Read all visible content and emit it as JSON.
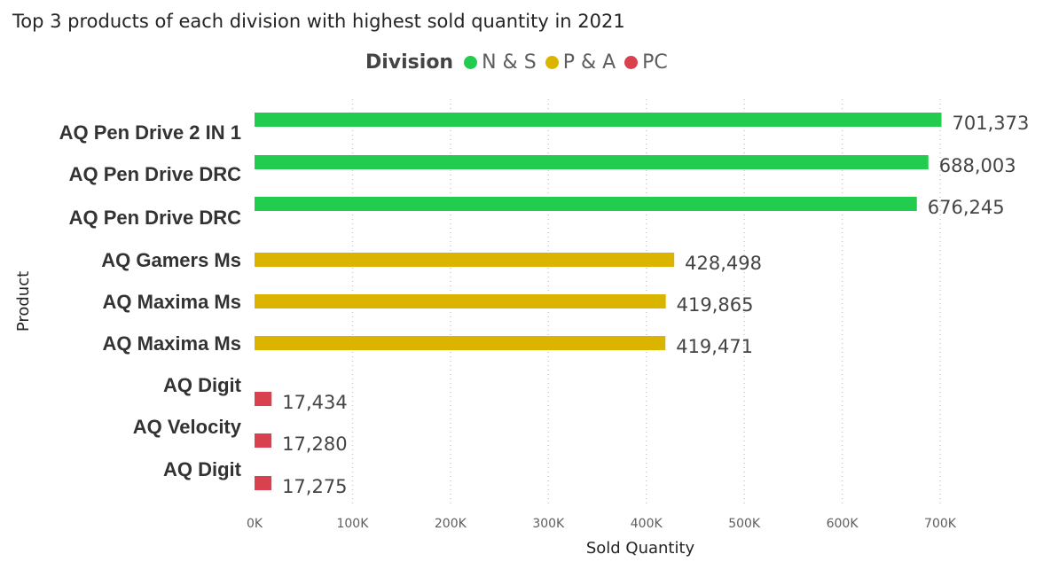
{
  "chart_data": {
    "type": "bar",
    "orientation": "horizontal",
    "title": "Top 3 products of each division with highest sold quantity in 2021",
    "xlabel": "Sold Quantity",
    "ylabel": "Product",
    "xlim": [
      0,
      700000
    ],
    "x_ticks": [
      "0K",
      "100K",
      "200K",
      "300K",
      "400K",
      "500K",
      "600K",
      "700K"
    ],
    "grid": true,
    "legend": {
      "title": "Division",
      "position": "top-center",
      "items": [
        {
          "name": "N & S",
          "color": "#22cc4e"
        },
        {
          "name": "P & A",
          "color": "#dbb400"
        },
        {
          "name": "PC",
          "color": "#d9414f"
        }
      ]
    },
    "bars": [
      {
        "category": "AQ Pen Drive 2 IN 1",
        "value": 701373,
        "value_label": "701,373",
        "division": "N & S"
      },
      {
        "category": "AQ Pen Drive DRC",
        "value": 688003,
        "value_label": "688,003",
        "division": "N & S"
      },
      {
        "category": "AQ Pen Drive DRC",
        "value": 676245,
        "value_label": "676,245",
        "division": "N & S"
      },
      {
        "category": "AQ Gamers Ms",
        "value": 428498,
        "value_label": "428,498",
        "division": "P & A"
      },
      {
        "category": "AQ Maxima Ms",
        "value": 419865,
        "value_label": "419,865",
        "division": "P & A"
      },
      {
        "category": "AQ Maxima Ms",
        "value": 419471,
        "value_label": "419,471",
        "division": "P & A"
      },
      {
        "category": "AQ Digit",
        "value": 17434,
        "value_label": "17,434",
        "division": "PC"
      },
      {
        "category": "AQ Velocity",
        "value": 17280,
        "value_label": "17,280",
        "division": "PC"
      },
      {
        "category": "AQ Digit",
        "value": 17275,
        "value_label": "17,275",
        "division": "PC"
      }
    ]
  }
}
